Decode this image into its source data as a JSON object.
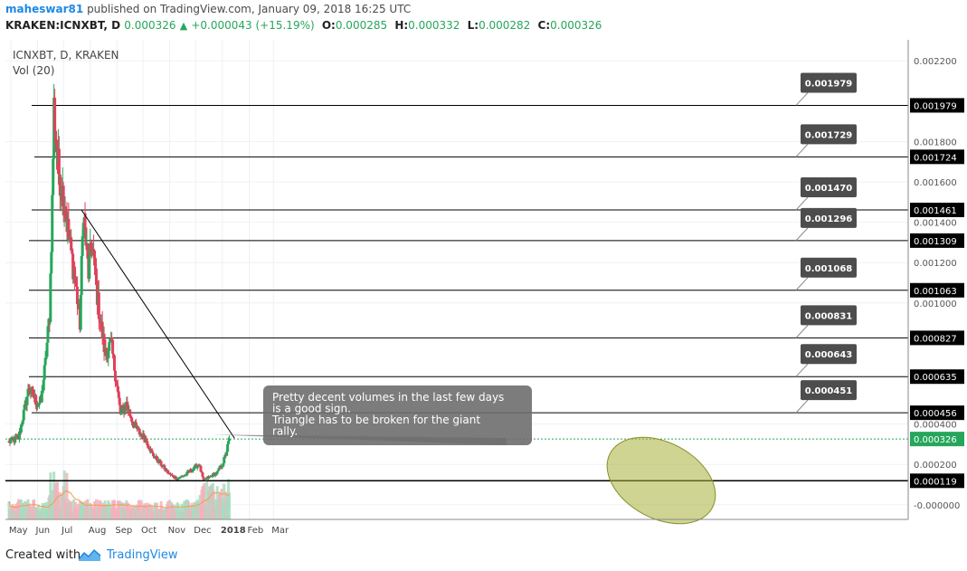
{
  "header": {
    "author": "maheswar81",
    "published": "published on TradingView.com, January 09, 2018 16:25 UTC",
    "symbol": "KRAKEN:ICNXBT, D",
    "last": "0.000326",
    "change": "+0.000043 (+15.19%)",
    "o_label": "O:",
    "o": "0.000285",
    "h_label": "H:",
    "h": "0.000332",
    "l_label": "L:",
    "l": "0.000282",
    "c_label": "C:",
    "c": "0.000326"
  },
  "footer": {
    "created": "Created with",
    "brand": "TradingView"
  },
  "colors": {
    "up": "#26a65b",
    "down": "#e0415a",
    "line": "#000000",
    "label_bg": "#4d4d4d",
    "annotation_fill": "#a8b03a",
    "ma": "#f0a050",
    "last_price": "#26a65b",
    "author": "#1e88e5"
  },
  "chart_data": {
    "type": "candlestick",
    "legend": "ICNXBT, D, KRAKEN",
    "vol_label": "Vol (20)",
    "y_ticks": [
      "0.002200",
      "0.001800",
      "0.001600",
      "0.001400",
      "0.001200",
      "0.001000",
      "0.000400",
      "0.000200",
      "-0.000000"
    ],
    "ylim": [
      -5e-05,
      0.00225
    ],
    "x_ticks": [
      "May",
      "Jun",
      "Jul",
      "Aug",
      "Sep",
      "Oct",
      "Nov",
      "Dec",
      "2018",
      "Feb",
      "Mar"
    ],
    "price_path": {
      "start": "2017-04-29",
      "anchors": [
        [
          "2017-04-29",
          0.00031
        ],
        [
          "2017-05-10",
          0.00033
        ],
        [
          "2017-05-22",
          0.00058
        ],
        [
          "2017-06-01",
          0.0005
        ],
        [
          "2017-06-05",
          0.00051
        ],
        [
          "2017-06-10",
          0.0007
        ],
        [
          "2017-06-15",
          0.00095
        ],
        [
          "2017-06-18",
          0.0015
        ],
        [
          "2017-06-20",
          0.00197
        ],
        [
          "2017-06-24",
          0.0017
        ],
        [
          "2017-07-02",
          0.0015
        ],
        [
          "2017-07-08",
          0.0013
        ],
        [
          "2017-07-15",
          0.0011
        ],
        [
          "2017-07-20",
          0.0009
        ],
        [
          "2017-07-24",
          0.00145
        ],
        [
          "2017-07-30",
          0.00115
        ],
        [
          "2017-08-03",
          0.0013
        ],
        [
          "2017-08-10",
          0.001
        ],
        [
          "2017-08-18",
          0.00075
        ],
        [
          "2017-08-25",
          0.0008
        ],
        [
          "2017-08-31",
          0.00062
        ],
        [
          "2017-09-05",
          0.00045
        ],
        [
          "2017-09-12",
          0.0005
        ],
        [
          "2017-09-20",
          0.0004
        ],
        [
          "2017-09-28",
          0.00035
        ],
        [
          "2017-10-05",
          0.00032
        ],
        [
          "2017-10-12",
          0.00025
        ],
        [
          "2017-10-22",
          0.0002
        ],
        [
          "2017-11-01",
          0.00015
        ],
        [
          "2017-11-10",
          0.00013
        ],
        [
          "2017-11-20",
          0.00015
        ],
        [
          "2017-11-28",
          0.00018
        ],
        [
          "2017-12-05",
          0.0002
        ],
        [
          "2017-12-10",
          0.00012
        ],
        [
          "2017-12-18",
          0.00014
        ],
        [
          "2017-12-26",
          0.00016
        ],
        [
          "2018-01-01",
          0.0002
        ],
        [
          "2018-01-05",
          0.00025
        ],
        [
          "2018-01-09",
          0.000326
        ]
      ]
    },
    "horizontal_levels": [
      {
        "value": 0.001979,
        "label": "0.001979",
        "note": "0.001979"
      },
      {
        "value": 0.001724,
        "label": "0.001724",
        "note": "0.001729"
      },
      {
        "value": 0.001461,
        "label": "0.001461",
        "note": "0.001470"
      },
      {
        "value": 0.001309,
        "label": "0.001309",
        "note": "0.001296"
      },
      {
        "value": 0.001063,
        "label": "0.001063",
        "note": "0.001068"
      },
      {
        "value": 0.000827,
        "label": "0.000827",
        "note": "0.000831"
      },
      {
        "value": 0.000635,
        "label": "0.000635",
        "note": "0.000643"
      },
      {
        "value": 0.000456,
        "label": "0.000456",
        "note": "0.000451"
      },
      {
        "value": 0.000119,
        "label": "0.000119",
        "note": ""
      }
    ],
    "last_price": {
      "value": 0.000326,
      "label": "0.000326"
    },
    "trendline": {
      "start": [
        "2017-07-22",
        0.00146
      ],
      "end": [
        "2018-01-15",
        0.00033
      ]
    },
    "annotation": {
      "lines": [
        "Pretty decent volumes in the last few days",
        "is a good sign.",
        "Triangle has to be broken for the giant",
        "rally."
      ],
      "target": [
        "2017-12-20",
        0.00033
      ]
    }
  }
}
